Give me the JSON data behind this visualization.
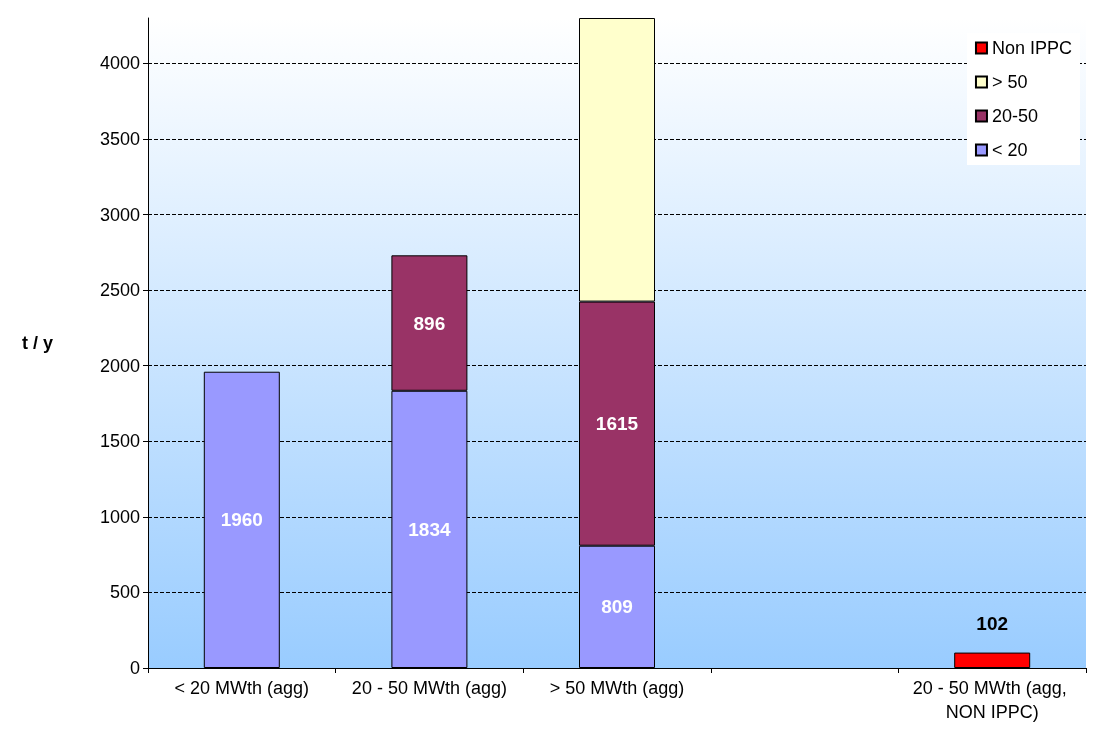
{
  "chart_data": {
    "type": "bar",
    "stacked": true,
    "ylabel": "t / y",
    "categories": [
      "< 20 MWth (agg)",
      "20 - 50 MWth (agg)",
      "> 50 MWth (agg)",
      null,
      "20 - 50 MWth (agg, NON IPPC)"
    ],
    "series": [
      {
        "name": "< 20",
        "color": "#9999ff",
        "values": [
          1960,
          1834,
          809,
          null,
          null
        ],
        "value_labels": [
          "1960",
          "1834",
          "809",
          null,
          null
        ]
      },
      {
        "name": "20-50",
        "color": "#993366",
        "values": [
          null,
          896,
          1615,
          null,
          null
        ],
        "value_labels": [
          null,
          "896",
          "1615",
          null,
          null
        ]
      },
      {
        "name": "> 50",
        "color": "#ffffcc",
        "values": [
          null,
          null,
          1876,
          null,
          null
        ]
      },
      {
        "name": "Non IPPC",
        "color": "#ff0000",
        "values": [
          null,
          null,
          null,
          null,
          102
        ],
        "value_labels": [
          null,
          null,
          null,
          null,
          "102"
        ]
      }
    ],
    "ylim": [
      0,
      4300
    ],
    "yticks": [
      0,
      500,
      1000,
      1500,
      2000,
      2500,
      3000,
      3500,
      4000
    ],
    "grid": "y",
    "legend": "top right"
  }
}
